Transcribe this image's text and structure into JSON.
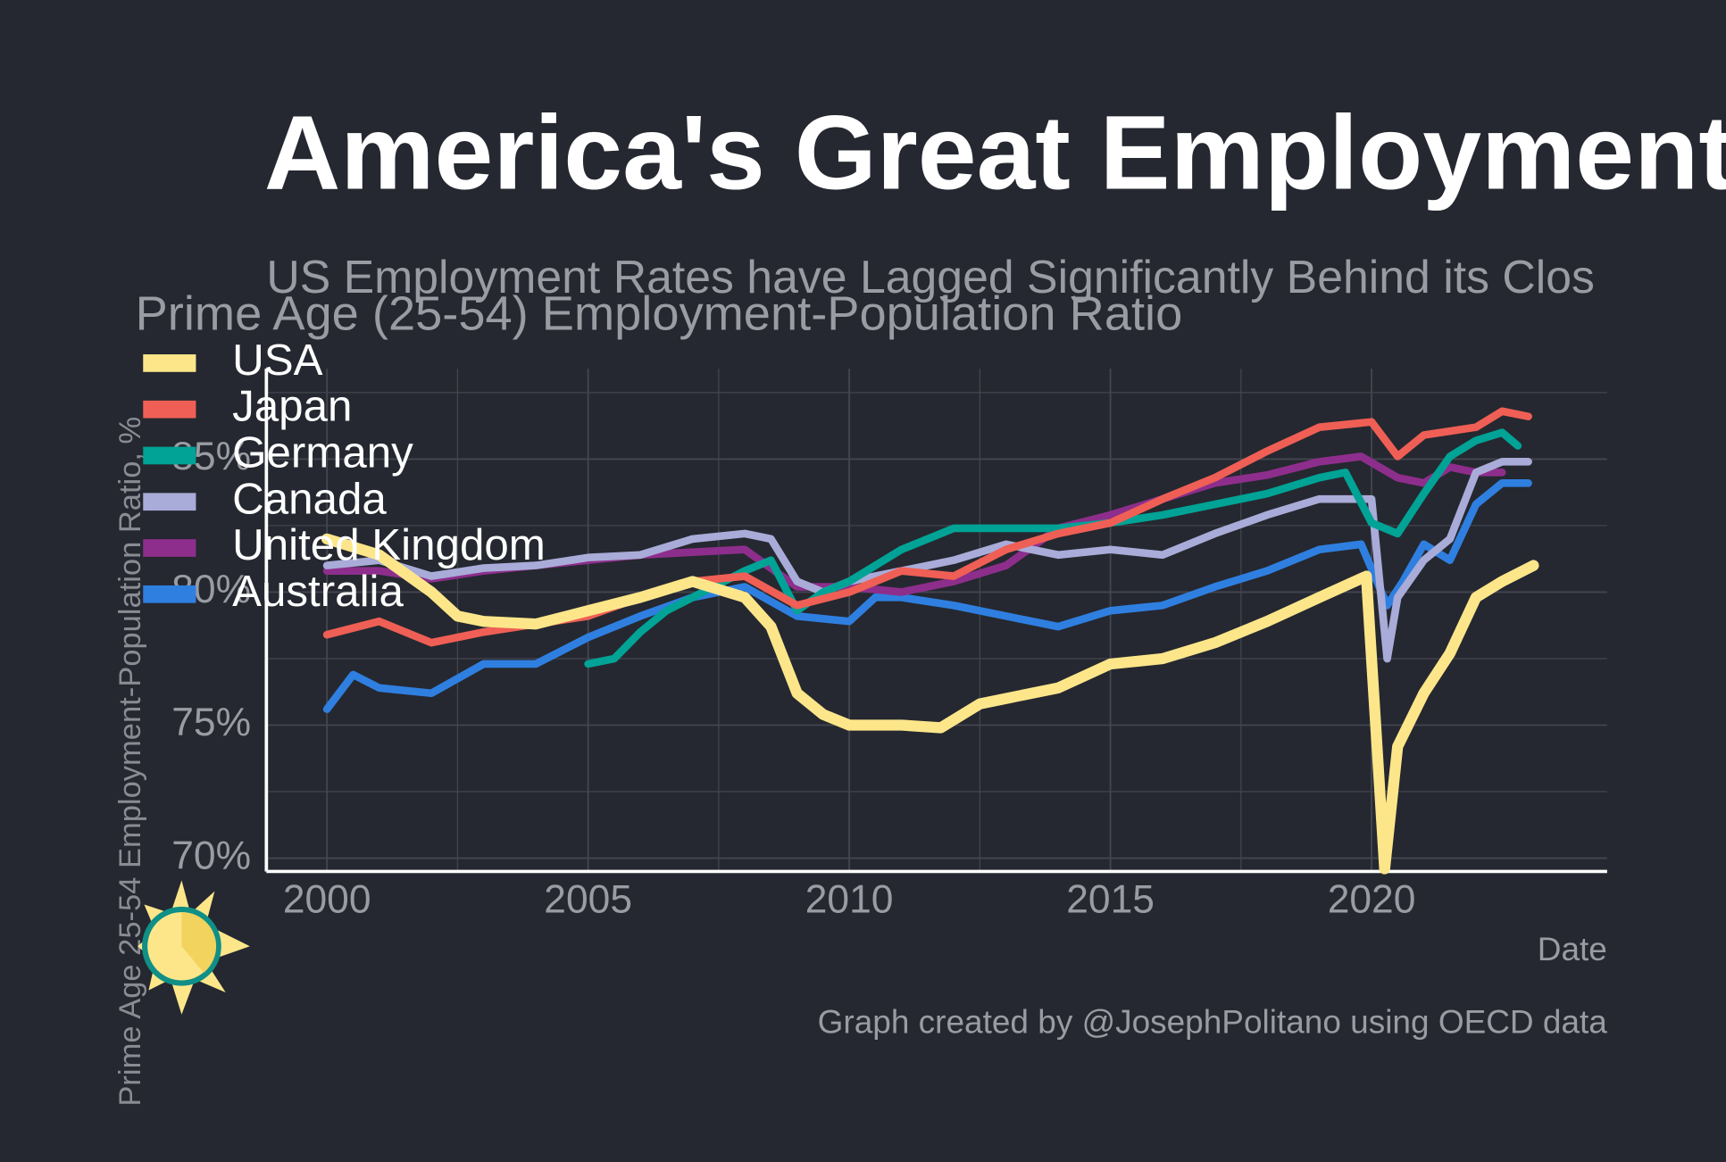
{
  "chart_data": {
    "type": "line",
    "title": "America's Great Employment",
    "subtitle": "US Employment Rates have Lagged Significantly Behind its Clos",
    "plot_title": "Prime Age (25-54) Employment-Population Ratio",
    "y_label": "Prime Age 25-54 Employment-Population Ratio, %",
    "x_label": "Date",
    "caption": "Graph created by @JosephPolitano using OECD data",
    "xlim": [
      1998.84,
      2024.51
    ],
    "xticks": [
      2000,
      2005,
      2010,
      2015,
      2020
    ],
    "ylim": [
      69.5,
      88.4
    ],
    "yticks": [
      {
        "value": 70,
        "label": "70%"
      },
      {
        "value": 75,
        "label": "75%"
      },
      {
        "value": 80,
        "label": "80%"
      },
      {
        "value": 85,
        "label": "85%"
      }
    ],
    "grid": true,
    "legend": "top-left",
    "series": [
      {
        "name": "USA",
        "color": "#fde68a",
        "x": [
          2000,
          2001,
          2002,
          2002.5,
          2003,
          2004,
          2005,
          2006,
          2007,
          2008,
          2008.5,
          2009,
          2009.5,
          2010,
          2011,
          2011.75,
          2012.5,
          2013,
          2014,
          2015,
          2016,
          2017,
          2018,
          2019,
          2019.9,
          2020.25,
          2020.5,
          2021,
          2021.5,
          2022,
          2022.5,
          2023.1
        ],
        "values": [
          82.0,
          81.4,
          80.0,
          79.1,
          78.9,
          78.8,
          79.3,
          79.8,
          80.4,
          79.8,
          78.7,
          76.2,
          75.4,
          75.0,
          75.0,
          74.9,
          75.8,
          76.0,
          76.4,
          77.3,
          77.5,
          78.1,
          78.9,
          79.8,
          80.6,
          69.6,
          74.2,
          76.2,
          77.7,
          79.8,
          80.4,
          81.0
        ]
      },
      {
        "name": "Japan",
        "color": "#ef5f55",
        "x": [
          2000,
          2001,
          2002,
          2003,
          2004,
          2005,
          2006,
          2007,
          2008,
          2009,
          2010,
          2011,
          2012,
          2013,
          2014,
          2015,
          2016,
          2017,
          2018,
          2019,
          2020,
          2020.5,
          2021,
          2022,
          2022.5,
          2023
        ],
        "values": [
          78.4,
          78.9,
          78.1,
          78.5,
          78.8,
          79.1,
          79.8,
          80.4,
          80.6,
          79.5,
          80.0,
          80.8,
          80.6,
          81.6,
          82.2,
          82.6,
          83.5,
          84.3,
          85.3,
          86.2,
          86.4,
          85.1,
          85.9,
          86.2,
          86.8,
          86.6
        ]
      },
      {
        "name": "Germany",
        "color": "#00a396",
        "x": [
          2005,
          2005.5,
          2006,
          2006.5,
          2007,
          2008,
          2008.5,
          2009,
          2009.5,
          2010,
          2011,
          2012,
          2013,
          2014,
          2015,
          2016,
          2017,
          2018,
          2019,
          2019.5,
          2020,
          2020.5,
          2021,
          2021.5,
          2022,
          2022.5,
          2022.8
        ],
        "values": [
          77.3,
          77.5,
          78.5,
          79.3,
          79.8,
          80.8,
          81.2,
          79.3,
          80.0,
          80.4,
          81.6,
          82.4,
          82.4,
          82.4,
          82.6,
          82.9,
          83.3,
          83.7,
          84.3,
          84.5,
          82.6,
          82.2,
          83.7,
          85.1,
          85.7,
          86.0,
          85.5
        ]
      },
      {
        "name": "Canada",
        "color": "#a9acd8",
        "x": [
          2000,
          2001,
          2002,
          2003,
          2004,
          2005,
          2006,
          2007,
          2008,
          2008.5,
          2009,
          2009.5,
          2010,
          2011,
          2012,
          2013,
          2014,
          2015,
          2016,
          2017,
          2018,
          2019,
          2020,
          2020.3,
          2020.5,
          2021,
          2021.5,
          2022,
          2022.5,
          2023
        ],
        "values": [
          81.0,
          81.2,
          80.6,
          80.9,
          81.0,
          81.3,
          81.4,
          82.0,
          82.2,
          82.0,
          80.4,
          80.0,
          80.4,
          80.8,
          81.2,
          81.8,
          81.4,
          81.6,
          81.4,
          82.2,
          82.9,
          83.5,
          83.5,
          77.5,
          79.8,
          81.2,
          82.0,
          84.5,
          84.9,
          84.9
        ]
      },
      {
        "name": "United Kingdom",
        "color": "#8e2e8c",
        "x": [
          2000,
          2001,
          2002,
          2003,
          2004,
          2005,
          2006,
          2007,
          2008,
          2009,
          2010,
          2011,
          2012,
          2013,
          2014,
          2015,
          2016,
          2017,
          2018,
          2019,
          2019.8,
          2020.5,
          2021,
          2021.5,
          2022,
          2022.5
        ],
        "values": [
          80.8,
          80.8,
          80.5,
          80.8,
          81.0,
          81.2,
          81.4,
          81.5,
          81.6,
          80.2,
          80.2,
          80.0,
          80.4,
          81.0,
          82.4,
          82.9,
          83.5,
          84.1,
          84.4,
          84.9,
          85.1,
          84.3,
          84.1,
          84.7,
          84.5,
          84.5
        ]
      },
      {
        "name": "Australia",
        "color": "#2f7fe0",
        "x": [
          2000,
          2000.5,
          2001,
          2002,
          2003,
          2004,
          2005,
          2006,
          2007,
          2008,
          2009,
          2010,
          2010.5,
          2011,
          2012,
          2013,
          2014,
          2015,
          2016,
          2017,
          2018,
          2019,
          2019.8,
          2020.3,
          2020.6,
          2021,
          2021.5,
          2022,
          2022.5,
          2023
        ],
        "values": [
          75.6,
          76.9,
          76.4,
          76.2,
          77.3,
          77.3,
          78.3,
          79.1,
          79.8,
          80.2,
          79.1,
          78.9,
          79.8,
          79.8,
          79.5,
          79.1,
          78.7,
          79.3,
          79.5,
          80.2,
          80.8,
          81.6,
          81.8,
          79.5,
          80.4,
          81.8,
          81.2,
          83.3,
          84.1,
          84.1
        ]
      }
    ]
  }
}
